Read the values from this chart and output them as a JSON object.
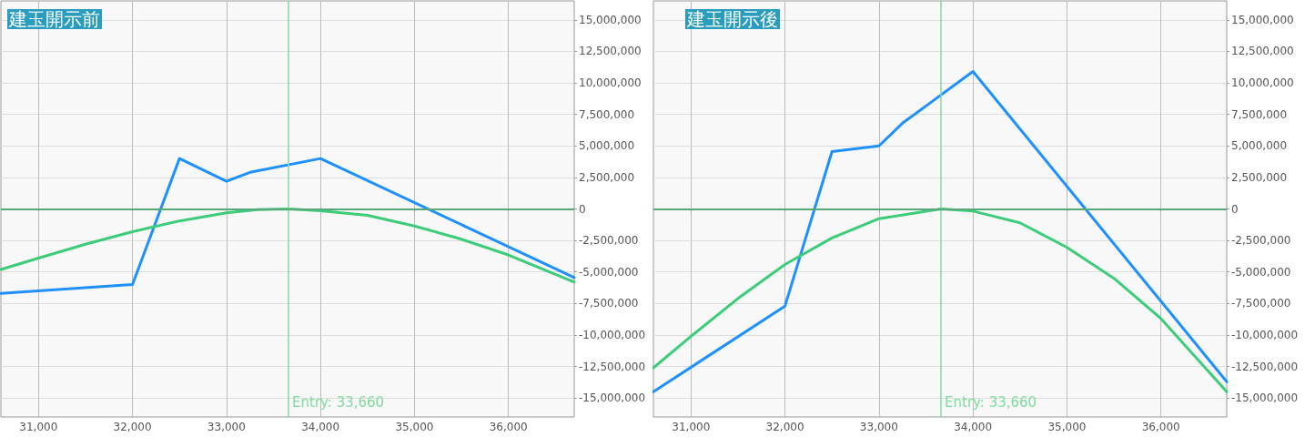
{
  "chart_data": [
    {
      "type": "line",
      "title": "建玉開示前",
      "xlim": [
        30600,
        36700
      ],
      "xticks": [
        {
          "value": 31000,
          "label": "31,000"
        },
        {
          "value": 32000,
          "label": "32,000"
        },
        {
          "value": 33000,
          "label": "33,000"
        },
        {
          "value": 34000,
          "label": "34,000"
        },
        {
          "value": 35000,
          "label": "35,000"
        },
        {
          "value": 36000,
          "label": "36,000"
        }
      ],
      "ylim": [
        -16500000,
        16500000
      ],
      "yticks": [
        {
          "value": -15000000,
          "label": "-15,000,000"
        },
        {
          "value": -12500000,
          "label": "-12,500,000"
        },
        {
          "value": -10000000,
          "label": "-10,000,000"
        },
        {
          "value": -7500000,
          "label": "-7,500,000"
        },
        {
          "value": -5000000,
          "label": "-5,000,000"
        },
        {
          "value": -2500000,
          "label": "-2,500,000"
        },
        0,
        {
          "value": 2500000,
          "label": "2,500,000"
        },
        {
          "value": 5000000,
          "label": "5,000,000"
        },
        {
          "value": 7500000,
          "label": "7,500,000"
        },
        {
          "value": 10000000,
          "label": "10,000,000"
        },
        {
          "value": 12500000,
          "label": "12,500,000"
        },
        {
          "value": 15000000,
          "label": "15,000,000"
        }
      ],
      "grid": true,
      "marker": "none",
      "line_style": "solid",
      "series": [
        {
          "color": "#1e90ff",
          "x": [
            30600,
            32000,
            32500,
            33000,
            33250,
            34000,
            36700
          ],
          "values": [
            -6700000,
            -6000000,
            4000000,
            2200000,
            2900000,
            4000000,
            -5450000
          ]
        },
        {
          "color": "#3ccc7a",
          "x": [
            30600,
            31000,
            31500,
            32000,
            32500,
            33000,
            33330,
            33660,
            34000,
            34500,
            35000,
            35500,
            36000,
            36700
          ],
          "values": [
            -4800000,
            -3900000,
            -2800000,
            -1800000,
            -950000,
            -300000,
            -50000,
            0,
            -150000,
            -500000,
            -1350000,
            -2400000,
            -3650000,
            -5800000
          ]
        }
      ],
      "ref_lines": [
        {
          "axis": "x",
          "value": 33660,
          "label": "Entry: 33,660",
          "color": "#7fdc9f"
        },
        {
          "axis": "y",
          "value": 0,
          "color": "#5aa87a"
        }
      ]
    },
    {
      "type": "line",
      "title": "建玉開示後",
      "xlim": [
        30600,
        36700
      ],
      "xticks": [
        {
          "value": 31000,
          "label": "31,000"
        },
        {
          "value": 32000,
          "label": "32,000"
        },
        {
          "value": 33000,
          "label": "33,000"
        },
        {
          "value": 34000,
          "label": "34,000"
        },
        {
          "value": 35000,
          "label": "35,000"
        },
        {
          "value": 36000,
          "label": "36,000"
        }
      ],
      "ylim": [
        -16500000,
        16500000
      ],
      "yticks": [
        {
          "value": -15000000,
          "label": "-15,000,000"
        },
        {
          "value": -12500000,
          "label": "-12,500,000"
        },
        {
          "value": -10000000,
          "label": "-10,000,000"
        },
        {
          "value": -7500000,
          "label": "-7,500,000"
        },
        {
          "value": -5000000,
          "label": "-5,000,000"
        },
        {
          "value": -2500000,
          "label": "-2,500,000"
        },
        0,
        {
          "value": 2500000,
          "label": "2,500,000"
        },
        {
          "value": 5000000,
          "label": "5,000,000"
        },
        {
          "value": 7500000,
          "label": "7,500,000"
        },
        {
          "value": 10000000,
          "label": "10,000,000"
        },
        {
          "value": 12500000,
          "label": "12,500,000"
        },
        {
          "value": 15000000,
          "label": "15,000,000"
        }
      ],
      "grid": true,
      "marker": "none",
      "line_style": "solid",
      "series": [
        {
          "color": "#1e90ff",
          "x": [
            30600,
            32000,
            32500,
            33000,
            33250,
            34000,
            36700
          ],
          "values": [
            -14500000,
            -7700000,
            4550000,
            5000000,
            6800000,
            10900000,
            -13700000
          ]
        },
        {
          "color": "#3ccc7a",
          "x": [
            30600,
            31000,
            31500,
            32000,
            32500,
            33000,
            33660,
            34000,
            34500,
            35000,
            35500,
            36000,
            36700
          ],
          "values": [
            -12600000,
            -10100000,
            -7100000,
            -4400000,
            -2300000,
            -770000,
            0,
            -170000,
            -1100000,
            -3050000,
            -5500000,
            -8700000,
            -14500000
          ]
        }
      ],
      "ref_lines": [
        {
          "axis": "x",
          "value": 33660,
          "label": "Entry: 33,660",
          "color": "#7fdc9f"
        },
        {
          "axis": "y",
          "value": 0,
          "color": "#5aa87a"
        }
      ]
    }
  ]
}
